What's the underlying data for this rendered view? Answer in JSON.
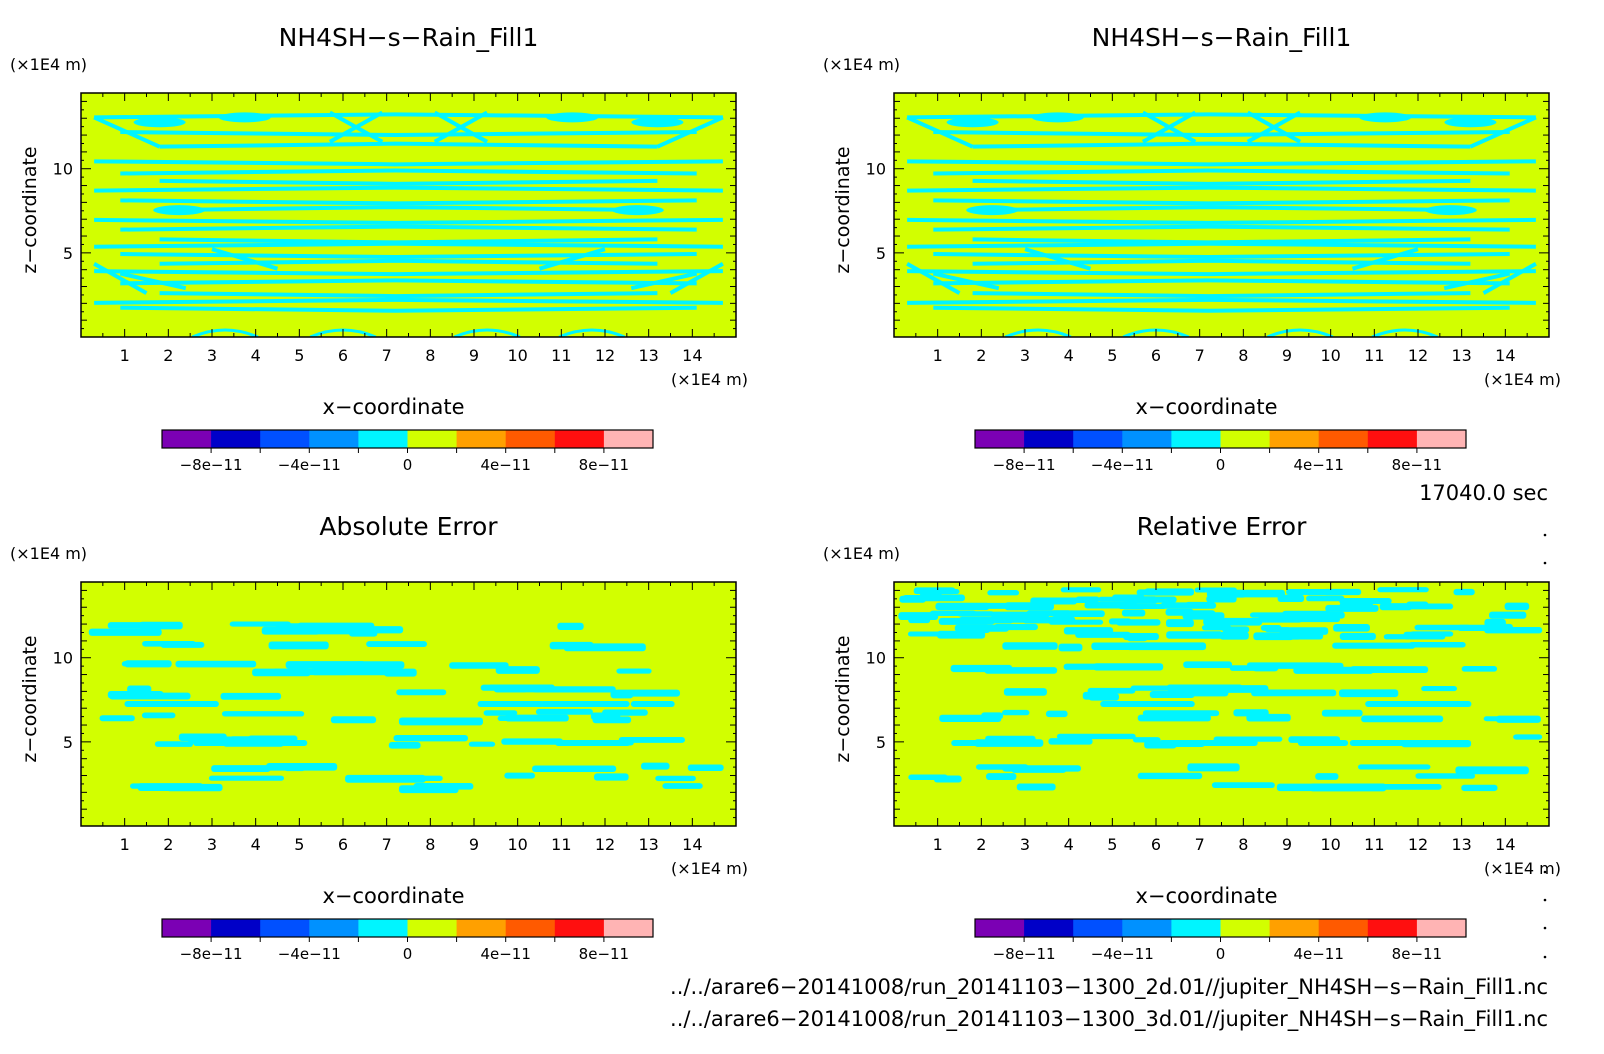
{
  "panels": [
    {
      "title": "NH4SH−s−Rain_Fill1",
      "xlabel": "x−coordinate",
      "ylabel": "z−coordinate",
      "x_unit": "(×1E4 m)",
      "y_unit": "(×1E4 m)",
      "x_ticks": [
        "1",
        "2",
        "3",
        "4",
        "5",
        "6",
        "7",
        "8",
        "9",
        "10",
        "11",
        "12",
        "13",
        "14"
      ],
      "y_ticks": [
        "5",
        "10"
      ],
      "colorbar_labels": [
        "−8e−11",
        "−4e−11",
        "0",
        "4e−11",
        "8e−11"
      ]
    },
    {
      "title": "NH4SH−s−Rain_Fill1",
      "xlabel": "x−coordinate",
      "ylabel": "z−coordinate",
      "x_unit": "(×1E4 m)",
      "y_unit": "(×1E4 m)",
      "x_ticks": [
        "1",
        "2",
        "3",
        "4",
        "5",
        "6",
        "7",
        "8",
        "9",
        "10",
        "11",
        "12",
        "13",
        "14"
      ],
      "y_ticks": [
        "5",
        "10"
      ],
      "colorbar_labels": [
        "−8e−11",
        "−4e−11",
        "0",
        "4e−11",
        "8e−11"
      ]
    },
    {
      "title": "Absolute Error",
      "xlabel": "x−coordinate",
      "ylabel": "z−coordinate",
      "x_unit": "(×1E4 m)",
      "y_unit": "(×1E4 m)",
      "x_ticks": [
        "1",
        "2",
        "3",
        "4",
        "5",
        "6",
        "7",
        "8",
        "9",
        "10",
        "11",
        "12",
        "13",
        "14"
      ],
      "y_ticks": [
        "5",
        "10"
      ],
      "colorbar_labels": [
        "−8e−11",
        "−4e−11",
        "0",
        "4e−11",
        "8e−11"
      ]
    },
    {
      "title": "Relative Error",
      "xlabel": "x−coordinate",
      "ylabel": "z−coordinate",
      "x_unit": "(×1E4 m)",
      "y_unit": "(×1E4 m)",
      "x_ticks": [
        "1",
        "2",
        "3",
        "4",
        "5",
        "6",
        "7",
        "8",
        "9",
        "10",
        "11",
        "12",
        "13",
        "14"
      ],
      "y_ticks": [
        "5",
        "10"
      ],
      "colorbar_labels": [
        "−8e−11",
        "−4e−11",
        "0",
        "4e−11",
        "8e−11"
      ]
    }
  ],
  "time_label": "17040.0 sec",
  "file_paths": [
    "../../arare6−20141008/run_20141103−1300_2d.01//jupiter_NH4SH−s−Rain_Fill1.nc",
    "../../arare6−20141008/run_20141103−1300_3d.01//jupiter_NH4SH−s−Rain_Fill1.nc"
  ],
  "colors": {
    "levels": [
      "#7b00b4",
      "#0000c8",
      "#0050ff",
      "#0091ff",
      "#00f5ff",
      "#d2ff00",
      "#ffa000",
      "#ff5a00",
      "#ff0f0f",
      "#ffb4b4"
    ],
    "field_background": "#d2ff00",
    "field_pattern": "#00f5ff"
  },
  "chart_data": [
    {
      "type": "heatmap",
      "title": "NH4SH−s−Rain_Fill1",
      "xlabel": "x−coordinate",
      "ylabel": "z−coordinate",
      "xlim": [
        0,
        15
      ],
      "ylim": [
        0,
        14.5
      ],
      "x_unit": "×1E4 m",
      "y_unit": "×1E4 m",
      "colorbar": {
        "levels": [
          -1e-10,
          -8e-11,
          -6e-11,
          -4e-11,
          -2e-11,
          0,
          2e-11,
          4e-11,
          6e-11,
          8e-11,
          1e-10
        ]
      },
      "description_values": "field mostly 0–2e-11 with horizontal bands near 0"
    },
    {
      "type": "heatmap",
      "title": "NH4SH−s−Rain_Fill1",
      "xlabel": "x−coordinate",
      "ylabel": "z−coordinate",
      "xlim": [
        0,
        15
      ],
      "ylim": [
        0,
        14.5
      ],
      "colorbar": {
        "levels": [
          -1e-10,
          -8e-11,
          -6e-11,
          -4e-11,
          -2e-11,
          0,
          2e-11,
          4e-11,
          6e-11,
          8e-11,
          1e-10
        ]
      }
    },
    {
      "type": "heatmap",
      "title": "Absolute Error",
      "xlabel": "x−coordinate",
      "ylabel": "z−coordinate",
      "xlim": [
        0,
        15
      ],
      "ylim": [
        0,
        14.5
      ],
      "colorbar": {
        "levels": [
          -1e-10,
          -8e-11,
          -6e-11,
          -4e-11,
          -2e-11,
          0,
          2e-11,
          4e-11,
          6e-11,
          8e-11,
          1e-10
        ]
      }
    },
    {
      "type": "heatmap",
      "title": "Relative Error",
      "xlabel": "x−coordinate",
      "ylabel": "z−coordinate",
      "xlim": [
        0,
        15
      ],
      "ylim": [
        0,
        14.5
      ],
      "colorbar": {
        "levels": [
          -1e-10,
          -8e-11,
          -6e-11,
          -4e-11,
          -2e-11,
          0,
          2e-11,
          4e-11,
          6e-11,
          8e-11,
          1e-10
        ]
      }
    }
  ]
}
